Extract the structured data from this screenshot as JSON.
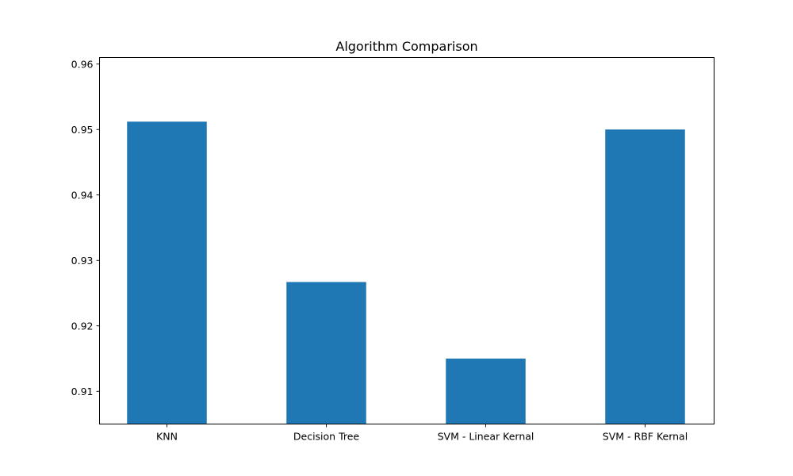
{
  "chart_data": {
    "type": "bar",
    "title": "Algorithm Comparison",
    "xlabel": "",
    "ylabel": "",
    "categories": [
      "KNN",
      "Decision Tree",
      "SVM - Linear Kernal",
      "SVM - RBF Kernal"
    ],
    "values": [
      0.9512,
      0.9267,
      0.915,
      0.95
    ],
    "ylim": [
      0.905,
      0.961
    ],
    "yticks": [
      "0.91",
      "0.92",
      "0.93",
      "0.94",
      "0.95",
      "0.96"
    ],
    "bar_color": "#1f77b4",
    "grid": false,
    "legend": "none"
  }
}
